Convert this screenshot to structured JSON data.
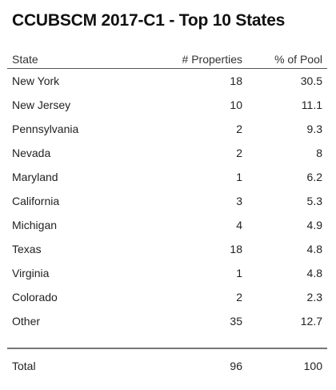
{
  "title": "CCUBSCM 2017-C1 - Top 10 States",
  "table": {
    "headers": {
      "state": "State",
      "properties": "# Properties",
      "pool": "% of Pool"
    },
    "rows": [
      {
        "state": "New York",
        "properties": "18",
        "pool": "30.5"
      },
      {
        "state": "New Jersey",
        "properties": "10",
        "pool": "11.1"
      },
      {
        "state": "Pennsylvania",
        "properties": "2",
        "pool": "9.3"
      },
      {
        "state": "Nevada",
        "properties": "2",
        "pool": "8"
      },
      {
        "state": "Maryland",
        "properties": "1",
        "pool": "6.2"
      },
      {
        "state": "California",
        "properties": "3",
        "pool": "5.3"
      },
      {
        "state": "Michigan",
        "properties": "4",
        "pool": "4.9"
      },
      {
        "state": "Texas",
        "properties": "18",
        "pool": "4.8"
      },
      {
        "state": "Virginia",
        "properties": "1",
        "pool": "4.8"
      },
      {
        "state": "Colorado",
        "properties": "2",
        "pool": "2.3"
      },
      {
        "state": "Other",
        "properties": "35",
        "pool": "12.7"
      }
    ],
    "total": {
      "state": "Total",
      "properties": "96",
      "pool": "100"
    }
  }
}
